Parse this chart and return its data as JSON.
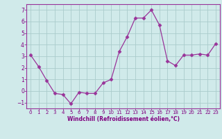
{
  "x": [
    0,
    1,
    2,
    3,
    4,
    5,
    6,
    7,
    8,
    9,
    10,
    11,
    12,
    13,
    14,
    15,
    16,
    17,
    18,
    19,
    20,
    21,
    22,
    23
  ],
  "y": [
    3.1,
    2.1,
    0.9,
    -0.2,
    -0.3,
    -1.1,
    -0.1,
    -0.2,
    -0.2,
    0.7,
    1.0,
    3.4,
    4.7,
    6.3,
    6.3,
    7.0,
    5.7,
    2.6,
    2.2,
    3.1,
    3.1,
    3.2,
    3.1,
    4.1
  ],
  "line_color": "#993399",
  "marker": "D",
  "marker_size": 2.5,
  "bg_color": "#d0eaea",
  "grid_color": "#aacccc",
  "xlabel": "Windchill (Refroidissement éolien,°C)",
  "xlabel_color": "#800080",
  "tick_color": "#800080",
  "axis_color": "#993399",
  "ylim": [
    -1.5,
    7.5
  ],
  "xlim": [
    -0.5,
    23.5
  ],
  "yticks": [
    -1,
    0,
    1,
    2,
    3,
    4,
    5,
    6,
    7
  ],
  "xticks": [
    0,
    1,
    2,
    3,
    4,
    5,
    6,
    7,
    8,
    9,
    10,
    11,
    12,
    13,
    14,
    15,
    16,
    17,
    18,
    19,
    20,
    21,
    22,
    23
  ]
}
